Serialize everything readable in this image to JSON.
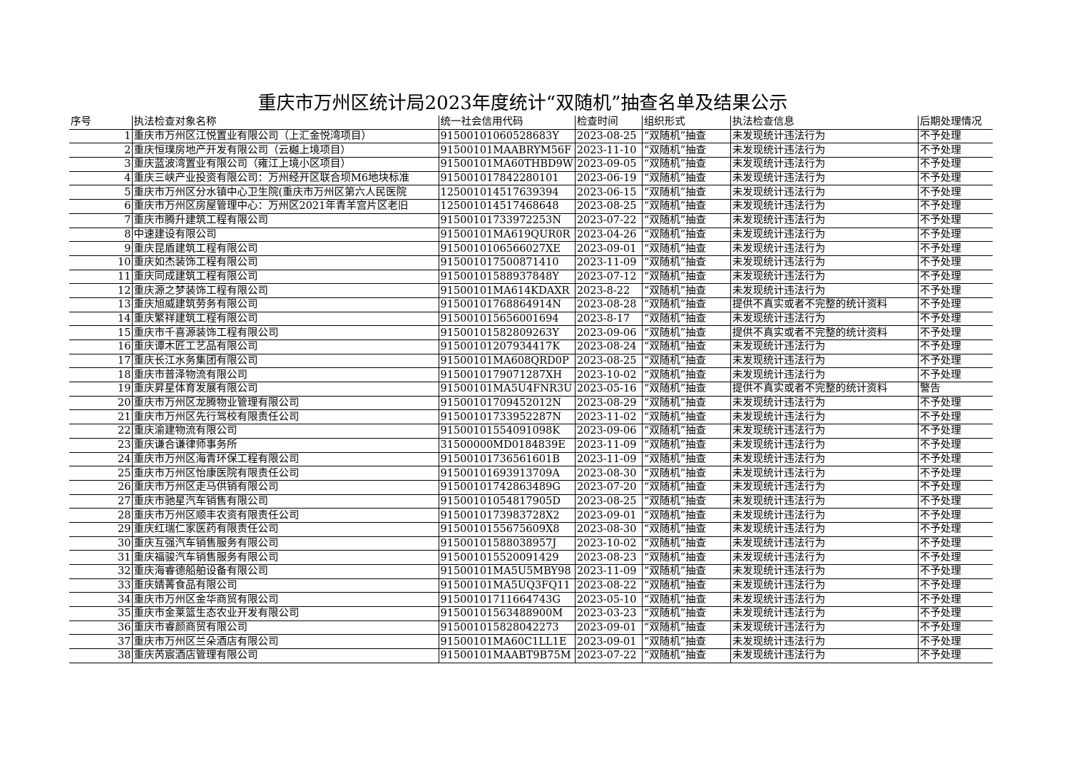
{
  "title": "重庆市万州区统计局2023年度统计“双随机”抽查名单及结果公示",
  "columns": [
    "序号",
    "执法检查对象名称",
    "统一社会信用代码",
    "检查时间",
    "组织形式",
    "执法检查信息",
    "后期处理情况"
  ],
  "rows": [
    [
      "1",
      "重庆市万州区江悦置业有限公司（上汇金悦湾项目）",
      "915001010605286​83Y",
      "2023-08-25",
      "“双随机”抽查",
      "未发现统计违法行为",
      "不予处理"
    ],
    [
      "2",
      "重庆恒璞房地产开发有限公司（云樾上境项目）",
      "91500101MAABRYM56F",
      "2023-11-10",
      "“双随机”抽查",
      "未发现统计违法行为",
      "不予处理"
    ],
    [
      "3",
      "重庆蓝波湾置业有限公司（雍江上境小区项目）",
      "91500101MA60THBD9W",
      "2023-09-05",
      "“双随机”抽查",
      "未发现统计违法行为",
      "不予处理"
    ],
    [
      "4",
      "重庆三峡产业投资有限公司：万州经开区联合坝M6地块标准",
      "915001017842280101",
      "2023-06-19",
      "“双随机”抽查",
      "未发现统计违法行为",
      "不予处理"
    ],
    [
      "5",
      "重庆市万州区分水镇中心卫生院(重庆市万州区第六人民医院",
      "125001014517639394",
      "2023-06-15",
      "“双随机”抽查",
      "未发现统计违法行为",
      "不予处理"
    ],
    [
      "6",
      "重庆市万州区房屋管理中心：万州区2021年青羊宫片区老旧",
      "125001014517468648",
      "2023-08-25",
      "“双随机”抽查",
      "未发现统计违法行为",
      "不予处理"
    ],
    [
      "7",
      "重庆市腾升建筑工程有限公司",
      "91500101733972253N",
      "2023-07-22",
      "“双随机”抽查",
      "未发现统计违法行为",
      "不予处理"
    ],
    [
      "8",
      "中速建设有限公司",
      "91500101MA619QUR0R",
      "2023-04-26",
      "“双随机”抽查",
      "未发现统计违法行为",
      "不予处理"
    ],
    [
      "9",
      "重庆昆盾建筑工程有限公司",
      "9150010106566027XE",
      "2023-09-01",
      "“双随机”抽查",
      "未发现统计违法行为",
      "不予处理"
    ],
    [
      "10",
      "重庆如杰装饰工程有限公司",
      "915001017500871410",
      "2023-11-09",
      "“双随机”抽查",
      "未发现统计违法行为",
      "不予处理"
    ],
    [
      "11",
      "重庆同成建筑工程有限公司",
      "91500101588937848Y",
      "2023-07-12",
      "“双随机”抽查",
      "未发现统计违法行为",
      "不予处理"
    ],
    [
      "12",
      "重庆源之梦装饰工程有限公司",
      "91500101MA614KDAXR",
      "2023-8-22",
      "“双随机”抽查",
      "未发现统计违法行为",
      "不予处理"
    ],
    [
      "13",
      "重庆旭威建筑劳务有限公司",
      "91500101768864914N",
      "2023-08-28",
      "“双随机”抽查",
      "提供不真实或者不完整的统计资料",
      "不予处理"
    ],
    [
      "14",
      "重庆繁祥建筑工程有限公司",
      "915001015656001694",
      "2023-8-17",
      "“双随机”抽查",
      "未发现统计违法行为",
      "不予处理"
    ],
    [
      "15",
      "重庆市千喜源装饰工程有限公司",
      "91500101582809263Y",
      "2023-09-06",
      "“双随机”抽查",
      "提供不真实或者不完整的统计资料",
      "不予处理"
    ],
    [
      "16",
      "重庆谭木匠工艺品有限公司",
      "91500101207934417K",
      "2023-08-24",
      "“双随机”抽查",
      "未发现统计违法行为",
      "不予处理"
    ],
    [
      "17",
      "重庆长江水务集团有限公司",
      "91500101MA608QRD0P",
      "2023-08-25",
      "“双随机”抽查",
      "未发现统计违法行为",
      "不予处理"
    ],
    [
      "18",
      "重庆市普泽物流有限公司",
      "9150010179071287XH",
      "2023-10-02",
      "“双随机”抽查",
      "未发现统计违法行为",
      "不予处理"
    ],
    [
      "19",
      "重庆昇星体育发展有限公司",
      "91500101MA5U4FNR3U",
      "2023-05-16",
      "“双随机”抽查",
      "提供不真实或者不完整的统计资料",
      "警告"
    ],
    [
      "20",
      "重庆市万州区龙腾物业管理有限公司",
      "91500101709452012N",
      "2023-08-29",
      "“双随机”抽查",
      "未发现统计违法行为",
      "不予处理"
    ],
    [
      "21",
      "重庆市万州区先行驾校有限责任公司",
      "91500101733952287N",
      "2023-11-02",
      "“双随机”抽查",
      "未发现统计违法行为",
      "不予处理"
    ],
    [
      "22",
      "重庆渝建物流有限公司",
      "91500101554091098K",
      "2023-09-06",
      "“双随机”抽查",
      "未发现统计违法行为",
      "不予处理"
    ],
    [
      "23",
      "重庆谦合谦律师事务所",
      "31500000MD0184839E",
      "2023-11-09",
      "“双随机”抽查",
      "未发现统计违法行为",
      "不予处理"
    ],
    [
      "24",
      "重庆市万州区海青环保工程有限公司",
      "91500101736561601B",
      "2023-11-09",
      "“双随机”抽查",
      "未发现统计违法行为",
      "不予处理"
    ],
    [
      "25",
      "重庆市万州区怡康医院有限责任公司",
      "91500101693913709A",
      "2023-08-30",
      "“双随机”抽查",
      "未发现统计违法行为",
      "不予处理"
    ],
    [
      "26",
      "重庆市万州区走马供销有限公司",
      "91500101742863489G",
      "2023-07-20",
      "“双随机”抽查",
      "未发现统计违法行为",
      "不予处理"
    ],
    [
      "27",
      "重庆市驰星汽车销售有限公司",
      "91500101054817905D",
      "2023-08-25",
      "“双随机”抽查",
      "未发现统计违法行为",
      "不予处理"
    ],
    [
      "28",
      "重庆市万州区顺丰农资有限责任公司",
      "9150010173983728X2",
      "2023-09-01",
      "“双随机”抽查",
      "未发现统计违法行为",
      "不予处理"
    ],
    [
      "29",
      "重庆红瑞仁家医药有限责任公司",
      "9150010155675609X8",
      "2023-08-30",
      "“双随机”抽查",
      "未发现统计违法行为",
      "不予处理"
    ],
    [
      "30",
      "重庆互强汽车销售服务有限公司",
      "91500101588038957J",
      "2023-10-02",
      "“双随机”抽查",
      "未发现统计违法行为",
      "不予处理"
    ],
    [
      "31",
      "重庆福骏汽车销售服务有限公司",
      "915001015520091429",
      "2023-08-23",
      "“双随机”抽查",
      "未发现统计违法行为",
      "不予处理"
    ],
    [
      "32",
      "重庆海睿德船舶设备有限公司",
      "91500101MA5U5MBY98",
      "2023-11-09",
      "“双随机”抽查",
      "未发现统计违法行为",
      "不予处理"
    ],
    [
      "33",
      "重庆婧菁食品有限公司",
      "91500101MA5UQ3FQ11",
      "2023-08-22",
      "“双随机”抽查",
      "未发现统计违法行为",
      "不予处理"
    ],
    [
      "34",
      "重庆市万州区金华商贸有限公司",
      "91500101711664743G",
      "2023-05-10",
      "“双随机”抽查",
      "未发现统计违法行为",
      "不予处理"
    ],
    [
      "35",
      "重庆市金莱篮生态农业开发有限公司",
      "91500101563488900M",
      "2023-03-23",
      "“双随机”抽查",
      "未发现统计违法行为",
      "不予处理"
    ],
    [
      "36",
      "重庆市睿颜商贸有限公司",
      "915001015828042273",
      "2023-09-01",
      "“双随机”抽查",
      "未发现统计违法行为",
      "不予处理"
    ],
    [
      "37",
      "重庆市万州区兰朵酒店有限公司",
      "91500101MA60C1LL1E",
      "2023-09-01",
      "“双随机”抽查",
      "未发现统计违法行为",
      "不予处理"
    ],
    [
      "38",
      "重庆芮宸酒店管理有限公司",
      "91500101MAABT9B75M",
      "2023-07-22",
      "“双随机”抽查",
      "未发现统计违法行为",
      "不予处理"
    ]
  ]
}
